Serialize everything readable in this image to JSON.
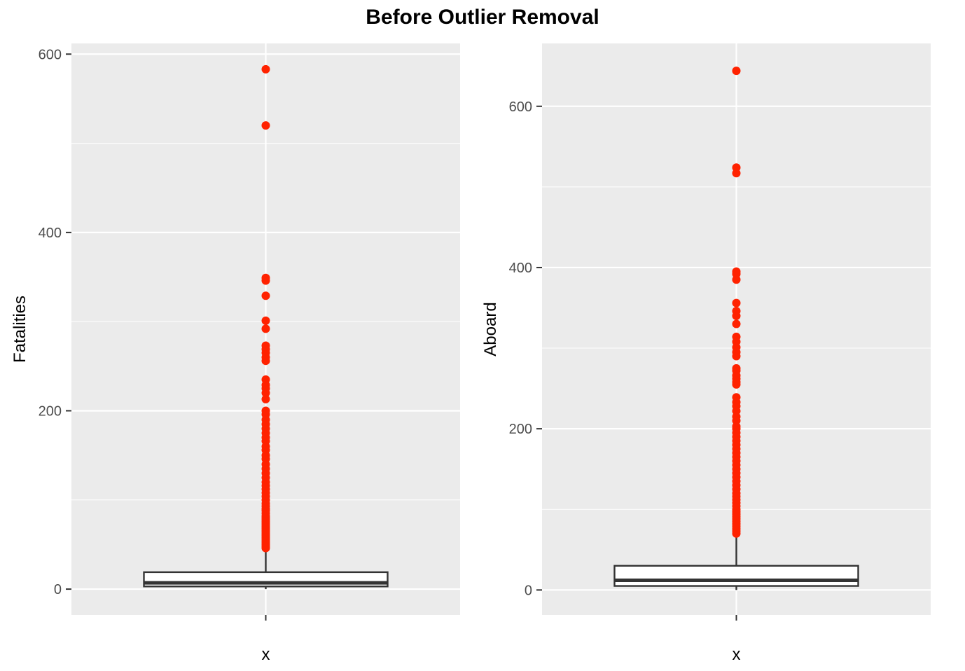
{
  "title": "Before Outlier Removal",
  "colors": {
    "panel": "#ebebeb",
    "grid": "#ffffff",
    "outlier": "#ff2200",
    "box": "#333333"
  },
  "chart_data": [
    {
      "type": "box",
      "xlabel": "x",
      "ylabel": "Fatalities",
      "categories": [
        "x"
      ],
      "ylim": [
        -29,
        612
      ],
      "yticks": [
        0,
        200,
        400,
        600
      ],
      "grid": true,
      "box": {
        "q1": 3,
        "median": 7,
        "q3": 19,
        "whisker_low": 0,
        "whisker_high": 45
      },
      "outliers": [
        46,
        48,
        50,
        52,
        54,
        56,
        58,
        60,
        62,
        64,
        66,
        68,
        70,
        72,
        74,
        76,
        78,
        80,
        82,
        85,
        88,
        90,
        93,
        96,
        100,
        104,
        108,
        112,
        116,
        120,
        125,
        130,
        135,
        140,
        146,
        150,
        156,
        160,
        166,
        170,
        175,
        180,
        185,
        190,
        196,
        200,
        213,
        220,
        225,
        229,
        235,
        256,
        260,
        265,
        269,
        273,
        292,
        301,
        329,
        346,
        349,
        520,
        583
      ]
    },
    {
      "type": "box",
      "xlabel": "x",
      "ylabel": "Aboard",
      "categories": [
        "x"
      ],
      "ylim": [
        -31,
        678
      ],
      "yticks": [
        0,
        200,
        400,
        600
      ],
      "grid": true,
      "box": {
        "q1": 5,
        "median": 12,
        "q3": 30,
        "whisker_low": 0,
        "whisker_high": 68
      },
      "outliers": [
        70,
        73,
        76,
        79,
        82,
        85,
        88,
        91,
        94,
        97,
        100,
        104,
        108,
        112,
        116,
        120,
        125,
        130,
        135,
        140,
        145,
        150,
        155,
        160,
        165,
        170,
        175,
        180,
        185,
        190,
        195,
        200,
        203,
        210,
        215,
        222,
        228,
        233,
        239,
        255,
        258,
        262,
        266,
        272,
        275,
        290,
        295,
        301,
        308,
        314,
        330,
        340,
        346,
        356,
        385,
        392,
        395,
        517,
        524,
        644
      ]
    }
  ]
}
